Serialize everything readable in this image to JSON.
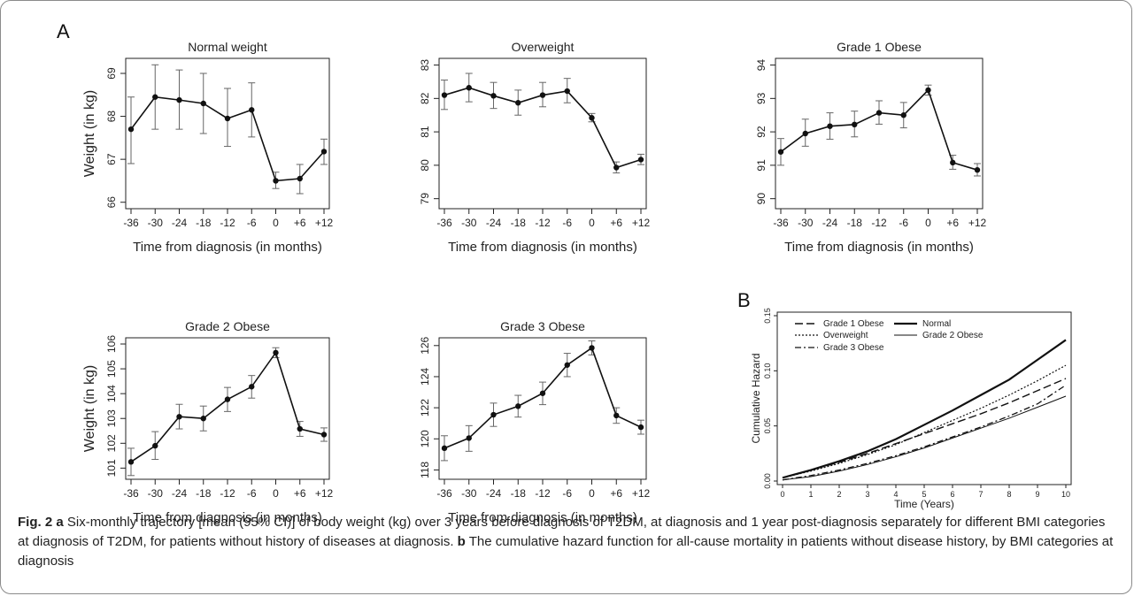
{
  "panel_labels": {
    "a": "A",
    "b": "B"
  },
  "chart_data": [
    {
      "type": "line",
      "title": "Normal weight",
      "xlabel": "Time from diagnosis (in months)",
      "ylabel": "Weight (in kg)",
      "x": [
        "-36",
        "-30",
        "-24",
        "-18",
        "-12",
        "-6",
        "0",
        "+6",
        "+12"
      ],
      "values": [
        67.7,
        68.45,
        68.38,
        68.3,
        67.95,
        68.15,
        66.5,
        66.55,
        67.18
      ],
      "ci_low": [
        66.9,
        67.7,
        67.7,
        67.6,
        67.3,
        67.52,
        66.32,
        66.2,
        66.88
      ],
      "ci_high": [
        68.45,
        69.2,
        69.08,
        69.0,
        68.65,
        68.78,
        66.7,
        66.88,
        67.47
      ],
      "yticks": [
        "66",
        "67",
        "68",
        "69"
      ],
      "ylim": [
        65.85,
        69.35
      ]
    },
    {
      "type": "line",
      "title": "Overweight",
      "xlabel": "Time from diagnosis (in months)",
      "ylabel": "",
      "x": [
        "-36",
        "-30",
        "-24",
        "-18",
        "-12",
        "-6",
        "0",
        "+6",
        "+12"
      ],
      "values": [
        82.1,
        82.32,
        82.08,
        81.87,
        82.1,
        82.22,
        81.42,
        79.93,
        80.17
      ],
      "ci_low": [
        81.67,
        81.9,
        81.7,
        81.5,
        81.75,
        81.87,
        81.3,
        79.77,
        80.02
      ],
      "ci_high": [
        82.55,
        82.75,
        82.48,
        82.25,
        82.48,
        82.6,
        81.55,
        80.1,
        80.33
      ],
      "yticks": [
        "79",
        "80",
        "81",
        "82",
        "83"
      ],
      "ylim": [
        78.7,
        83.2
      ]
    },
    {
      "type": "line",
      "title": "Grade 1 Obese",
      "xlabel": "Time from diagnosis (in months)",
      "ylabel": "",
      "x": [
        "-36",
        "-30",
        "-24",
        "-18",
        "-12",
        "-6",
        "0",
        "+6",
        "+12"
      ],
      "values": [
        91.4,
        91.95,
        92.17,
        92.22,
        92.57,
        92.5,
        93.25,
        91.08,
        90.86
      ],
      "ci_low": [
        91.0,
        91.57,
        91.78,
        91.85,
        92.23,
        92.12,
        93.1,
        90.88,
        90.68
      ],
      "ci_high": [
        91.8,
        92.38,
        92.57,
        92.62,
        92.93,
        92.88,
        93.4,
        91.3,
        91.05
      ],
      "yticks": [
        "90",
        "91",
        "92",
        "93",
        "94"
      ],
      "ylim": [
        89.7,
        94.2
      ]
    },
    {
      "type": "line",
      "title": "Grade 2 Obese",
      "xlabel": "Time from diagnosis (in months)",
      "ylabel": "Weight (in kg)",
      "x": [
        "-36",
        "-30",
        "-24",
        "-18",
        "-12",
        "-6",
        "0",
        "+6",
        "+12"
      ],
      "values": [
        101.25,
        101.9,
        103.07,
        103.0,
        103.77,
        104.28,
        105.65,
        102.58,
        102.35
      ],
      "ci_low": [
        100.7,
        101.35,
        102.58,
        102.5,
        103.28,
        103.82,
        105.45,
        102.28,
        102.08
      ],
      "ci_high": [
        101.8,
        102.47,
        103.57,
        103.5,
        104.25,
        104.73,
        105.85,
        102.88,
        102.62
      ],
      "yticks": [
        "101",
        "102",
        "103",
        "104",
        "105",
        "106"
      ],
      "ylim": [
        100.55,
        106.25
      ]
    },
    {
      "type": "line",
      "title": "Grade 3 Obese",
      "xlabel": "Time from diagnosis (in months)",
      "ylabel": "",
      "x": [
        "-36",
        "-30",
        "-24",
        "-18",
        "-12",
        "-6",
        "0",
        "+6",
        "+12"
      ],
      "values": [
        119.4,
        120.05,
        121.55,
        122.1,
        122.93,
        124.75,
        125.85,
        121.5,
        120.75
      ],
      "ci_low": [
        118.6,
        119.2,
        120.8,
        121.4,
        122.2,
        124.0,
        125.4,
        121.0,
        120.3
      ],
      "ci_high": [
        120.2,
        120.85,
        122.3,
        122.8,
        123.65,
        125.5,
        126.3,
        122.0,
        121.2
      ],
      "yticks": [
        "118",
        "120",
        "122",
        "124",
        "126"
      ],
      "ylim": [
        117.4,
        126.5
      ]
    },
    {
      "type": "line",
      "title": "",
      "xlabel": "Time (Years)",
      "ylabel": "Cumulative Hazard",
      "xlim": [
        0,
        10
      ],
      "ylim": [
        0,
        0.15
      ],
      "xticks": [
        "0",
        "1",
        "2",
        "3",
        "4",
        "5",
        "6",
        "7",
        "8",
        "9",
        "10"
      ],
      "yticks": [
        "0.00",
        "0.05",
        "0.10",
        "0.15"
      ],
      "legend": "top-left",
      "series": [
        {
          "name": "Grade 1 Obese",
          "x": [
            0,
            1,
            2,
            3,
            4,
            5,
            6,
            7,
            8,
            9,
            10
          ],
          "values": [
            0.003,
            0.01,
            0.017,
            0.025,
            0.034,
            0.043,
            0.052,
            0.061,
            0.071,
            0.082,
            0.093
          ]
        },
        {
          "name": "Normal",
          "x": [
            0,
            1,
            2,
            3,
            4,
            5,
            6,
            7,
            8,
            9,
            10
          ],
          "values": [
            0.003,
            0.01,
            0.018,
            0.027,
            0.038,
            0.051,
            0.064,
            0.078,
            0.092,
            0.11,
            0.128
          ]
        },
        {
          "name": "Overweight",
          "x": [
            0,
            1,
            2,
            3,
            4,
            5,
            6,
            7,
            8,
            9,
            10
          ],
          "values": [
            0.003,
            0.009,
            0.016,
            0.024,
            0.033,
            0.044,
            0.055,
            0.066,
            0.078,
            0.091,
            0.105
          ]
        },
        {
          "name": "Grade 2 Obese",
          "x": [
            0,
            1,
            2,
            3,
            4,
            5,
            6,
            7,
            8,
            9,
            10
          ],
          "values": [
            0.001,
            0.004,
            0.009,
            0.015,
            0.022,
            0.03,
            0.039,
            0.048,
            0.057,
            0.067,
            0.077
          ]
        },
        {
          "name": "Grade 3 Obese",
          "x": [
            0,
            1,
            2,
            3,
            4,
            5,
            6,
            7,
            8,
            9,
            10
          ],
          "values": [
            0.001,
            0.005,
            0.01,
            0.016,
            0.023,
            0.031,
            0.04,
            0.049,
            0.059,
            0.07,
            0.087
          ]
        }
      ]
    }
  ],
  "caption": {
    "label": "Fig. 2",
    "part_a": "a",
    "text_a": "Six-monthly trajectory [mean (95% CI)] of body weight (kg) over 3 years before diagnosis of T2DM, at diagnosis and 1 year post-diagnosis separately for different BMI categories at diagnosis of T2DM, for patients without history of diseases at diagnosis.",
    "part_b": "b",
    "text_b": "The cumulative hazard function for all-cause mortality in patients without disease history, by BMI categories at diagnosis"
  }
}
